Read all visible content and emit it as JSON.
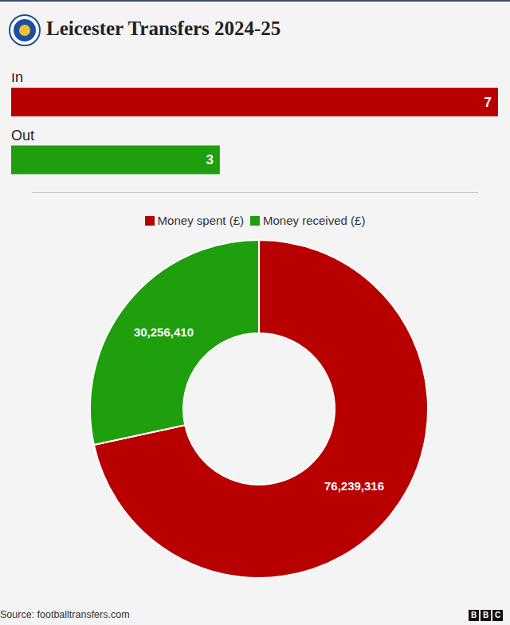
{
  "title": "Leicester Transfers 2024-25",
  "source": "Source: footballtransfers.com",
  "logo": "BBC",
  "chart_data": [
    {
      "type": "bar",
      "orientation": "horizontal",
      "categories": [
        "In",
        "Out"
      ],
      "values": [
        7,
        3
      ],
      "colors": [
        "#b80000",
        "#1f9e0e"
      ],
      "xlim": [
        0,
        7
      ],
      "data_labels": true,
      "tick_labels": false,
      "grid": false
    },
    {
      "type": "pie",
      "categories": [
        "Money spent (£)",
        "Money received (£)"
      ],
      "values": [
        76239316,
        30256410
      ],
      "value_labels": [
        "76,239,316",
        "30,256,410"
      ],
      "colors": [
        "#b80000",
        "#1f9e0e"
      ],
      "data_labels": true,
      "legend": "top"
    }
  ]
}
